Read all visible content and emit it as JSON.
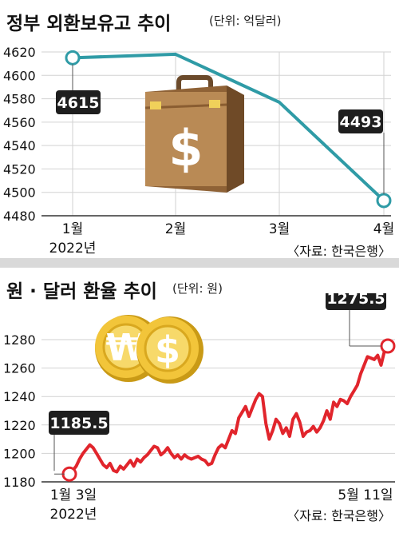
{
  "charts": [
    {
      "title": "정부 외환보유고 추이",
      "unit_label": "(단위: 억달러)",
      "source_label": "〈자료: 한국은행〉",
      "line_color": "#2f9ba6"
    },
    {
      "title": "원 · 달러 환율 추이",
      "unit_label": "(단위: 원)",
      "source_label": "〈자료: 한국은행〉",
      "line_color": "#e1252c"
    }
  ],
  "chart_data": [
    {
      "type": "line",
      "title": "정부 외환보유고 추이",
      "unit": "억달러",
      "categories": [
        "1월",
        "2월",
        "3월",
        "4월"
      ],
      "x_sublabels": [
        "2022년",
        "",
        "",
        ""
      ],
      "values": [
        4615,
        4618,
        4577,
        4493
      ],
      "yticks": [
        4480,
        4500,
        4520,
        4540,
        4560,
        4580,
        4600,
        4620
      ],
      "ylim": [
        4480,
        4620
      ],
      "annotations": [
        {
          "index": 0,
          "label": "4615"
        },
        {
          "index": 3,
          "label": "4493"
        }
      ],
      "grid": true,
      "icon": "briefcase-dollar-icon"
    },
    {
      "type": "line",
      "title": "원 · 달러 환율 추이",
      "unit": "원",
      "start_label": "1월 3일",
      "start_sublabel": "2022년",
      "end_label": "5월 11일",
      "values": [
        1185.5,
        1188,
        1191,
        1196,
        1200,
        1203,
        1206,
        1204,
        1200,
        1196,
        1192,
        1190,
        1193,
        1188,
        1187,
        1191,
        1189,
        1192,
        1195,
        1191,
        1196,
        1194,
        1197,
        1199,
        1202,
        1205,
        1204,
        1199,
        1201,
        1204,
        1200,
        1197,
        1199,
        1196,
        1199,
        1197,
        1196,
        1197,
        1198,
        1196,
        1195,
        1192,
        1193,
        1199,
        1204,
        1206,
        1204,
        1210,
        1216,
        1214,
        1225,
        1229,
        1233,
        1226,
        1232,
        1238,
        1242,
        1240,
        1221,
        1210,
        1216,
        1224,
        1221,
        1214,
        1218,
        1212,
        1224,
        1228,
        1222,
        1212,
        1215,
        1216,
        1219,
        1215,
        1218,
        1223,
        1230,
        1224,
        1236,
        1233,
        1238,
        1237,
        1235,
        1240,
        1244,
        1248,
        1256,
        1262,
        1268,
        1267,
        1266,
        1269,
        1262,
        1272,
        1275.5
      ],
      "yticks": [
        1180,
        1200,
        1220,
        1240,
        1260,
        1280
      ],
      "ylim": [
        1180,
        1280
      ],
      "annotations": [
        {
          "position": "first",
          "label": "1185.5"
        },
        {
          "position": "last",
          "label": "1275.5"
        }
      ],
      "grid": true,
      "icon": "won-dollar-coins-icon"
    }
  ]
}
